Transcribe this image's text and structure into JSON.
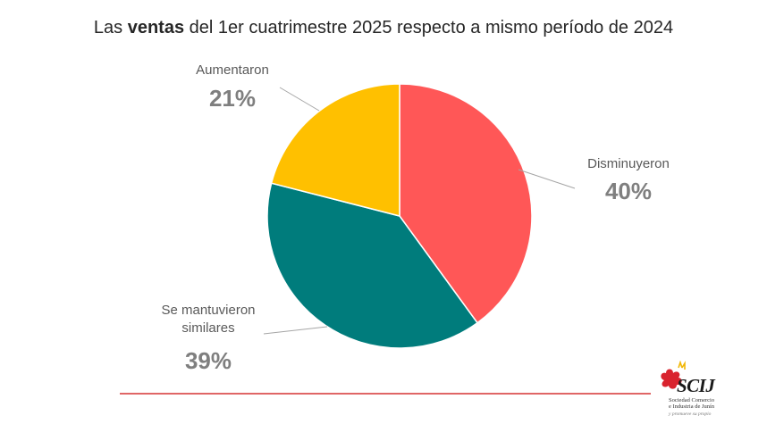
{
  "title": {
    "prefix": "Las ",
    "bold": "ventas",
    "suffix": " del 1er cuatrimestre 2025 respecto a mismo período de 2024"
  },
  "chart_data": {
    "type": "pie",
    "title": "Las ventas del 1er cuatrimestre 2025 respecto a mismo período de 2024",
    "slices": [
      {
        "label": "Disminuyeron",
        "value": 40,
        "display": "40%",
        "color": "#ff5757"
      },
      {
        "label": "Se mantuvieron similares",
        "label_lines": [
          "Se mantuvieron",
          "similares"
        ],
        "value": 39,
        "display": "39%",
        "color": "#007c7c"
      },
      {
        "label": "Aumentaron",
        "value": 21,
        "display": "21%",
        "color": "#ffc000"
      }
    ],
    "start_angle_deg": 0,
    "direction": "clockwise",
    "legend": "none",
    "data_labels": "outside with leader lines"
  },
  "footer": {
    "line_color": "#e06666"
  },
  "logo": {
    "brand": "SCIJ",
    "subtitle_line1": "Sociedad Comercio",
    "subtitle_line2": "e Industria de Junín",
    "tagline": "y promueve su propio"
  }
}
